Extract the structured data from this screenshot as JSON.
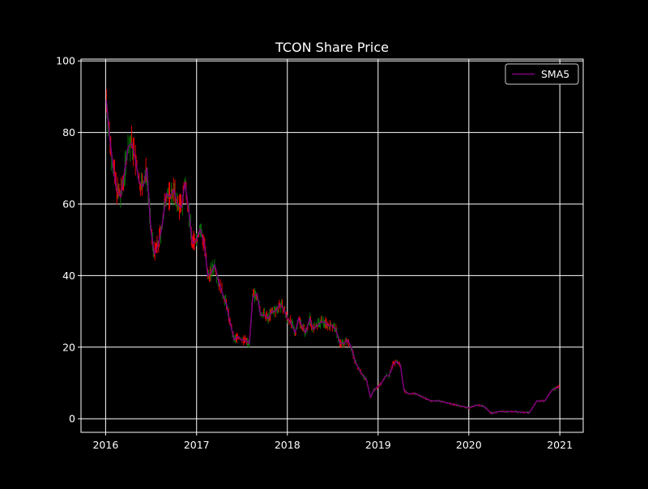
{
  "chart_data": {
    "type": "line",
    "title": "TCON Share Price",
    "xlabel": "",
    "ylabel": "",
    "x_ticks": [
      "2016",
      "2017",
      "2018",
      "2019",
      "2020",
      "2021"
    ],
    "y_ticks": [
      0,
      20,
      40,
      60,
      80,
      100
    ],
    "xlim": [
      "2015-09-24",
      "2021-04-05"
    ],
    "ylim": [
      -3.8,
      100.5
    ],
    "grid": true,
    "background": "#000000",
    "legend": {
      "placement": "top-right",
      "entries": [
        {
          "label": "SMA5",
          "color": "#800080"
        }
      ]
    },
    "candle_colors": {
      "up": "#008000",
      "down": "#ff0000"
    },
    "series": [
      {
        "name": "SMA5",
        "color": "#800080",
        "points": [
          [
            "2016-01-04",
            89
          ],
          [
            "2016-01-15",
            80
          ],
          [
            "2016-02-01",
            70
          ],
          [
            "2016-02-15",
            64
          ],
          [
            "2016-03-01",
            62
          ],
          [
            "2016-03-15",
            68
          ],
          [
            "2016-04-01",
            76
          ],
          [
            "2016-04-15",
            77
          ],
          [
            "2016-05-01",
            72
          ],
          [
            "2016-05-15",
            66
          ],
          [
            "2016-06-01",
            65
          ],
          [
            "2016-06-15",
            70
          ],
          [
            "2016-07-01",
            53
          ],
          [
            "2016-07-15",
            46
          ],
          [
            "2016-08-01",
            49
          ],
          [
            "2016-08-15",
            54
          ],
          [
            "2016-09-01",
            63
          ],
          [
            "2016-09-15",
            62
          ],
          [
            "2016-10-01",
            64
          ],
          [
            "2016-10-15",
            60
          ],
          [
            "2016-11-01",
            59
          ],
          [
            "2016-11-15",
            66
          ],
          [
            "2016-12-01",
            58
          ],
          [
            "2016-12-15",
            49
          ],
          [
            "2017-01-01",
            50
          ],
          [
            "2017-01-15",
            53
          ],
          [
            "2017-02-01",
            49
          ],
          [
            "2017-02-15",
            40
          ],
          [
            "2017-03-01",
            41
          ],
          [
            "2017-03-15",
            43
          ],
          [
            "2017-04-01",
            38
          ],
          [
            "2017-04-15",
            35
          ],
          [
            "2017-05-01",
            32
          ],
          [
            "2017-05-15",
            27
          ],
          [
            "2017-06-01",
            22
          ],
          [
            "2017-06-15",
            23
          ],
          [
            "2017-07-01",
            22
          ],
          [
            "2017-07-15",
            22
          ],
          [
            "2017-08-01",
            21
          ],
          [
            "2017-08-15",
            34
          ],
          [
            "2017-09-01",
            35
          ],
          [
            "2017-09-15",
            29
          ],
          [
            "2017-10-01",
            29
          ],
          [
            "2017-10-15",
            28
          ],
          [
            "2017-11-01",
            30
          ],
          [
            "2017-11-15",
            30
          ],
          [
            "2017-12-01",
            32
          ],
          [
            "2017-12-15",
            31
          ],
          [
            "2018-01-01",
            28
          ],
          [
            "2018-01-15",
            27
          ],
          [
            "2018-02-01",
            24
          ],
          [
            "2018-02-15",
            28
          ],
          [
            "2018-03-01",
            26
          ],
          [
            "2018-03-15",
            24
          ],
          [
            "2018-04-01",
            28
          ],
          [
            "2018-04-15",
            25
          ],
          [
            "2018-05-01",
            26
          ],
          [
            "2018-05-15",
            27
          ],
          [
            "2018-06-01",
            27
          ],
          [
            "2018-06-15",
            26
          ],
          [
            "2018-07-01",
            26
          ],
          [
            "2018-07-15",
            25
          ],
          [
            "2018-08-01",
            21
          ],
          [
            "2018-08-15",
            21
          ],
          [
            "2018-09-01",
            22
          ],
          [
            "2018-09-15",
            20
          ],
          [
            "2018-10-01",
            16
          ],
          [
            "2018-10-15",
            14
          ],
          [
            "2018-11-01",
            12
          ],
          [
            "2018-11-15",
            11
          ],
          [
            "2018-12-01",
            6
          ],
          [
            "2018-12-15",
            8
          ],
          [
            "2019-01-01",
            9
          ],
          [
            "2019-01-15",
            10
          ],
          [
            "2019-02-01",
            12
          ],
          [
            "2019-02-15",
            12
          ],
          [
            "2019-03-01",
            15
          ],
          [
            "2019-03-15",
            16
          ],
          [
            "2019-04-01",
            15
          ],
          [
            "2019-04-15",
            8
          ],
          [
            "2019-05-01",
            7
          ],
          [
            "2019-06-01",
            7
          ],
          [
            "2019-07-01",
            6
          ],
          [
            "2019-08-01",
            5
          ],
          [
            "2019-09-01",
            5
          ],
          [
            "2019-10-01",
            4.5
          ],
          [
            "2019-11-01",
            4
          ],
          [
            "2019-12-01",
            3.5
          ],
          [
            "2020-01-01",
            3
          ],
          [
            "2020-02-01",
            3.8
          ],
          [
            "2020-03-01",
            3.5
          ],
          [
            "2020-04-01",
            1.5
          ],
          [
            "2020-05-01",
            2
          ],
          [
            "2020-06-01",
            2
          ],
          [
            "2020-07-01",
            2
          ],
          [
            "2020-08-01",
            1.8
          ],
          [
            "2020-09-01",
            1.7
          ],
          [
            "2020-10-01",
            5
          ],
          [
            "2020-11-01",
            5
          ],
          [
            "2020-12-01",
            8
          ],
          [
            "2020-12-31",
            9
          ]
        ]
      }
    ]
  }
}
